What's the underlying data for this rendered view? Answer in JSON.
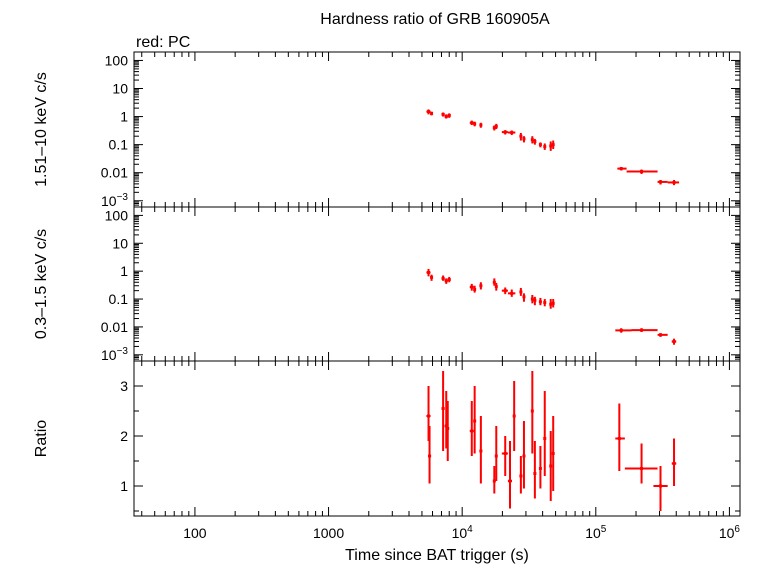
{
  "chart_data": {
    "type": "scatter",
    "title": "Hardness ratio of GRB 160905A",
    "subtitle": "red: PC",
    "xlabel": "Time since BAT trigger (s)",
    "xscale": "log",
    "xlim": [
      35,
      1200000
    ],
    "x_tick_labels": [
      "100",
      "1000",
      "10⁴",
      "10⁵",
      "10⁶"
    ],
    "color": "#ff0000",
    "panels": [
      {
        "ylabel": "1.51–10 keV c/s",
        "yscale": "log",
        "ylim": [
          0.0006,
          200
        ],
        "y_tick_labels": [
          "10⁻³",
          "0.01",
          "0.1",
          "1",
          "10",
          "100"
        ],
        "points": [
          {
            "x": 5600,
            "xerr": [
              5400,
              5800
            ],
            "y": 1.5,
            "yerr": [
              1.2,
              1.8
            ]
          },
          {
            "x": 5900,
            "xerr": [
              5800,
              6000
            ],
            "y": 1.3,
            "yerr": [
              1.1,
              1.5
            ]
          },
          {
            "x": 7200,
            "xerr": [
              7000,
              7400
            ],
            "y": 1.2,
            "yerr": [
              1.0,
              1.4
            ]
          },
          {
            "x": 7600,
            "xerr": [
              7400,
              7800
            ],
            "y": 1.0,
            "yerr": [
              0.85,
              1.2
            ]
          },
          {
            "x": 8000,
            "xerr": [
              7800,
              8200
            ],
            "y": 1.1,
            "yerr": [
              0.9,
              1.3
            ]
          },
          {
            "x": 11800,
            "xerr": [
              11400,
              12200
            ],
            "y": 0.6,
            "yerr": [
              0.5,
              0.72
            ]
          },
          {
            "x": 12400,
            "xerr": [
              12200,
              12600
            ],
            "y": 0.55,
            "yerr": [
              0.45,
              0.66
            ]
          },
          {
            "x": 13800,
            "xerr": [
              13500,
              14100
            ],
            "y": 0.5,
            "yerr": [
              0.4,
              0.6
            ]
          },
          {
            "x": 17400,
            "xerr": [
              17000,
              17800
            ],
            "y": 0.4,
            "yerr": [
              0.32,
              0.48
            ]
          },
          {
            "x": 18000,
            "xerr": [
              17800,
              18300
            ],
            "y": 0.45,
            "yerr": [
              0.36,
              0.55
            ]
          },
          {
            "x": 21000,
            "xerr": [
              19800,
              22000
            ],
            "y": 0.28,
            "yerr": [
              0.23,
              0.33
            ]
          },
          {
            "x": 23500,
            "xerr": [
              22000,
              25000
            ],
            "y": 0.27,
            "yerr": [
              0.22,
              0.32
            ]
          },
          {
            "x": 27500,
            "xerr": [
              27000,
              28000
            ],
            "y": 0.2,
            "yerr": [
              0.14,
              0.26
            ]
          },
          {
            "x": 29000,
            "xerr": [
              28500,
              29500
            ],
            "y": 0.16,
            "yerr": [
              0.12,
              0.2
            ]
          },
          {
            "x": 33500,
            "xerr": [
              33000,
              34000
            ],
            "y": 0.15,
            "yerr": [
              0.11,
              0.2
            ]
          },
          {
            "x": 35000,
            "xerr": [
              34500,
              35500
            ],
            "y": 0.13,
            "yerr": [
              0.1,
              0.16
            ]
          },
          {
            "x": 38500,
            "xerr": [
              38000,
              39000
            ],
            "y": 0.1,
            "yerr": [
              0.08,
              0.12
            ]
          },
          {
            "x": 41500,
            "xerr": [
              41000,
              42000
            ],
            "y": 0.085,
            "yerr": [
              0.065,
              0.11
            ]
          },
          {
            "x": 46000,
            "xerr": [
              45300,
              46700
            ],
            "y": 0.09,
            "yerr": [
              0.06,
              0.13
            ]
          },
          {
            "x": 48000,
            "xerr": [
              47300,
              48700
            ],
            "y": 0.1,
            "yerr": [
              0.07,
              0.14
            ]
          },
          {
            "x": 155000,
            "xerr": [
              145000,
              170000
            ],
            "y": 0.014,
            "yerr": [
              0.012,
              0.016
            ]
          },
          {
            "x": 220000,
            "xerr": [
              170000,
              290000
            ],
            "y": 0.011,
            "yerr": [
              0.009,
              0.013
            ]
          },
          {
            "x": 305000,
            "xerr": [
              290000,
              345000
            ],
            "y": 0.0047,
            "yerr": [
              0.0038,
              0.0055
            ]
          },
          {
            "x": 385000,
            "xerr": [
              345000,
              420000
            ],
            "y": 0.0045,
            "yerr": [
              0.0036,
              0.0055
            ]
          }
        ]
      },
      {
        "ylabel": "0.3–1.5 keV c/s",
        "yscale": "log",
        "ylim": [
          0.0006,
          200
        ],
        "y_tick_labels": [
          "10⁻³",
          "0.01",
          "0.1",
          "1",
          "10",
          "100"
        ],
        "points": [
          {
            "x": 5600,
            "xerr": [
              5400,
              5800
            ],
            "y": 0.9,
            "yerr": [
              0.65,
              1.2
            ]
          },
          {
            "x": 5900,
            "xerr": [
              5800,
              6000
            ],
            "y": 0.6,
            "yerr": [
              0.45,
              0.75
            ]
          },
          {
            "x": 7200,
            "xerr": [
              7000,
              7400
            ],
            "y": 0.55,
            "yerr": [
              0.45,
              0.7
            ]
          },
          {
            "x": 7600,
            "xerr": [
              7400,
              7800
            ],
            "y": 0.45,
            "yerr": [
              0.35,
              0.55
            ]
          },
          {
            "x": 8000,
            "xerr": [
              7800,
              8200
            ],
            "y": 0.5,
            "yerr": [
              0.4,
              0.62
            ]
          },
          {
            "x": 11800,
            "xerr": [
              11400,
              12200
            ],
            "y": 0.27,
            "yerr": [
              0.2,
              0.35
            ]
          },
          {
            "x": 12400,
            "xerr": [
              12200,
              12600
            ],
            "y": 0.22,
            "yerr": [
              0.17,
              0.3
            ]
          },
          {
            "x": 13800,
            "xerr": [
              13500,
              14100
            ],
            "y": 0.3,
            "yerr": [
              0.22,
              0.4
            ]
          },
          {
            "x": 17400,
            "xerr": [
              17000,
              17800
            ],
            "y": 0.4,
            "yerr": [
              0.3,
              0.55
            ]
          },
          {
            "x": 18000,
            "xerr": [
              17800,
              18300
            ],
            "y": 0.28,
            "yerr": [
              0.2,
              0.38
            ]
          },
          {
            "x": 21000,
            "xerr": [
              19800,
              22000
            ],
            "y": 0.2,
            "yerr": [
              0.15,
              0.26
            ]
          },
          {
            "x": 23500,
            "xerr": [
              22000,
              25000
            ],
            "y": 0.16,
            "yerr": [
              0.12,
              0.22
            ]
          },
          {
            "x": 27500,
            "xerr": [
              27000,
              28000
            ],
            "y": 0.18,
            "yerr": [
              0.13,
              0.25
            ]
          },
          {
            "x": 29000,
            "xerr": [
              28500,
              29500
            ],
            "y": 0.12,
            "yerr": [
              0.08,
              0.16
            ]
          },
          {
            "x": 33500,
            "xerr": [
              33000,
              34000
            ],
            "y": 0.1,
            "yerr": [
              0.07,
              0.14
            ]
          },
          {
            "x": 35000,
            "xerr": [
              34500,
              35500
            ],
            "y": 0.09,
            "yerr": [
              0.06,
              0.12
            ]
          },
          {
            "x": 38500,
            "xerr": [
              38000,
              39000
            ],
            "y": 0.08,
            "yerr": [
              0.06,
              0.11
            ]
          },
          {
            "x": 41500,
            "xerr": [
              41000,
              42000
            ],
            "y": 0.075,
            "yerr": [
              0.055,
              0.1
            ]
          },
          {
            "x": 46000,
            "xerr": [
              45300,
              46700
            ],
            "y": 0.065,
            "yerr": [
              0.045,
              0.1
            ]
          },
          {
            "x": 48000,
            "xerr": [
              47300,
              48700
            ],
            "y": 0.07,
            "yerr": [
              0.05,
              0.1
            ]
          },
          {
            "x": 155000,
            "xerr": [
              140000,
              185000
            ],
            "y": 0.0075,
            "yerr": [
              0.0062,
              0.009
            ]
          },
          {
            "x": 220000,
            "xerr": [
              185000,
              290000
            ],
            "y": 0.0077,
            "yerr": [
              0.0066,
              0.009
            ]
          },
          {
            "x": 305000,
            "xerr": [
              290000,
              345000
            ],
            "y": 0.0052,
            "yerr": [
              0.0044,
              0.006
            ]
          },
          {
            "x": 385000,
            "xerr": [
              370000,
              400000
            ],
            "y": 0.003,
            "yerr": [
              0.0023,
              0.0038
            ]
          }
        ]
      },
      {
        "ylabel": "Ratio",
        "yscale": "linear",
        "ylim": [
          0.4,
          3.5
        ],
        "y_tick_labels": [
          "1",
          "2",
          "3"
        ],
        "points": [
          {
            "x": 5600,
            "xerr": [
              5400,
              5800
            ],
            "y": 2.4,
            "yerr": [
              1.9,
              3.0
            ]
          },
          {
            "x": 5700,
            "xerr": [
              5550,
              5850
            ],
            "y": 1.6,
            "yerr": [
              1.05,
              2.2
            ]
          },
          {
            "x": 7200,
            "xerr": [
              7000,
              7400
            ],
            "y": 2.55,
            "yerr": [
              1.7,
              3.3
            ]
          },
          {
            "x": 7600,
            "xerr": [
              7400,
              7800
            ],
            "y": 2.2,
            "yerr": [
              1.75,
              2.9
            ]
          },
          {
            "x": 7800,
            "xerr": [
              7650,
              7950
            ],
            "y": 2.15,
            "yerr": [
              1.5,
              2.7
            ]
          },
          {
            "x": 11800,
            "xerr": [
              11400,
              12200
            ],
            "y": 2.1,
            "yerr": [
              1.6,
              2.7
            ]
          },
          {
            "x": 12400,
            "xerr": [
              12200,
              12600
            ],
            "y": 2.3,
            "yerr": [
              1.65,
              3.0
            ]
          },
          {
            "x": 13800,
            "xerr": [
              13500,
              14100
            ],
            "y": 1.7,
            "yerr": [
              1.05,
              2.4
            ]
          },
          {
            "x": 17400,
            "xerr": [
              17000,
              17800
            ],
            "y": 1.1,
            "yerr": [
              0.85,
              1.4
            ]
          },
          {
            "x": 18000,
            "xerr": [
              17800,
              18300
            ],
            "y": 1.6,
            "yerr": [
              1.1,
              2.2
            ]
          },
          {
            "x": 21000,
            "xerr": [
              19800,
              22000
            ],
            "y": 1.65,
            "yerr": [
              1.2,
              2.0
            ]
          },
          {
            "x": 22800,
            "xerr": [
              22000,
              23600
            ],
            "y": 1.1,
            "yerr": [
              0.55,
              1.9
            ]
          },
          {
            "x": 24500,
            "xerr": [
              24000,
              25000
            ],
            "y": 2.4,
            "yerr": [
              1.7,
              3.1
            ]
          },
          {
            "x": 27500,
            "xerr": [
              27000,
              28000
            ],
            "y": 1.2,
            "yerr": [
              0.85,
              1.6
            ]
          },
          {
            "x": 29000,
            "xerr": [
              28500,
              29500
            ],
            "y": 1.6,
            "yerr": [
              0.95,
              2.3
            ]
          },
          {
            "x": 33500,
            "xerr": [
              33000,
              34000
            ],
            "y": 2.5,
            "yerr": [
              1.65,
              3.3
            ]
          },
          {
            "x": 35000,
            "xerr": [
              34500,
              35500
            ],
            "y": 1.25,
            "yerr": [
              0.75,
              1.9
            ]
          },
          {
            "x": 38500,
            "xerr": [
              38000,
              39000
            ],
            "y": 1.35,
            "yerr": [
              0.95,
              1.8
            ]
          },
          {
            "x": 41500,
            "xerr": [
              41000,
              42000
            ],
            "y": 1.95,
            "yerr": [
              1.2,
              2.9
            ]
          },
          {
            "x": 46000,
            "xerr": [
              45300,
              46700
            ],
            "y": 1.4,
            "yerr": [
              0.7,
              2.1
            ]
          },
          {
            "x": 48000,
            "xerr": [
              47300,
              48700
            ],
            "y": 1.65,
            "yerr": [
              0.9,
              2.4
            ]
          },
          {
            "x": 150000,
            "xerr": [
              140000,
              165000
            ],
            "y": 1.95,
            "yerr": [
              1.3,
              2.65
            ]
          },
          {
            "x": 220000,
            "xerr": [
              165000,
              290000
            ],
            "y": 1.35,
            "yerr": [
              1.05,
              1.85
            ]
          },
          {
            "x": 305000,
            "xerr": [
              270000,
              345000
            ],
            "y": 1.0,
            "yerr": [
              0.5,
              1.4
            ]
          },
          {
            "x": 385000,
            "xerr": [
              370000,
              400000
            ],
            "y": 1.45,
            "yerr": [
              1.0,
              1.95
            ]
          }
        ]
      }
    ]
  }
}
